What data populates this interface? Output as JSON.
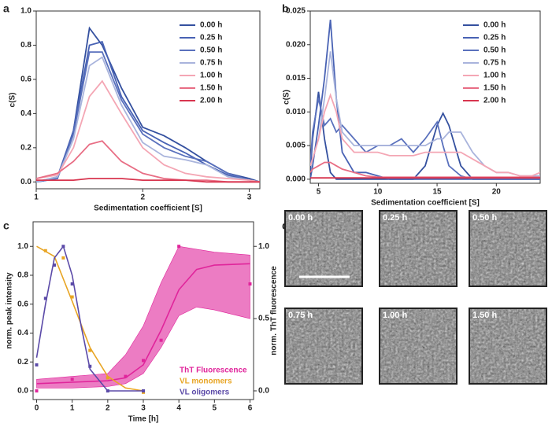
{
  "panel_labels": [
    "a",
    "b",
    "c",
    "d"
  ],
  "images": [
    "0.00 h",
    "0.25 h",
    "0.50 h",
    "0.75 h",
    "1.00 h",
    "1.50 h"
  ],
  "chart_data": [
    {
      "type": "line",
      "x_label": "Sedimentation coefficient [S]",
      "y_label": "c(S)",
      "xlim": [
        1,
        3.1
      ],
      "xticks": [
        1,
        2,
        3
      ],
      "ylim": [
        -0.04,
        1.0
      ],
      "yticks": [
        {
          "value": 0,
          "label": "0.0"
        },
        0.2,
        0.4,
        0.6,
        0.8,
        {
          "value": 1,
          "label": "1.0"
        }
      ],
      "x": [
        1.0,
        1.2,
        1.35,
        1.5,
        1.62,
        1.8,
        2.0,
        2.2,
        2.4,
        2.6,
        2.8,
        3.0,
        3.1
      ],
      "series": [
        {
          "name": "0.00 h",
          "color": "#34509f",
          "values": [
            0.0,
            0.02,
            0.3,
            0.9,
            0.8,
            0.55,
            0.32,
            0.27,
            0.2,
            0.12,
            0.05,
            0.02,
            0.0
          ]
        },
        {
          "name": "0.25 h",
          "color": "#4862b4",
          "values": [
            0.0,
            0.03,
            0.3,
            0.8,
            0.82,
            0.5,
            0.3,
            0.23,
            0.17,
            0.1,
            0.04,
            0.01,
            0.0
          ]
        },
        {
          "name": "0.50 h",
          "color": "#5a71bd",
          "values": [
            0.0,
            0.02,
            0.28,
            0.76,
            0.76,
            0.48,
            0.28,
            0.2,
            0.15,
            0.12,
            0.05,
            0.01,
            0.0
          ]
        },
        {
          "name": "0.75 h",
          "color": "#a9b4dc",
          "values": [
            0.0,
            0.03,
            0.25,
            0.68,
            0.73,
            0.45,
            0.23,
            0.15,
            0.13,
            0.1,
            0.03,
            0.01,
            0.0
          ]
        },
        {
          "name": "1.00 h",
          "color": "#f4a6b4",
          "values": [
            0.02,
            0.04,
            0.2,
            0.5,
            0.59,
            0.4,
            0.2,
            0.1,
            0.05,
            0.03,
            0.02,
            0.01,
            0.0
          ]
        },
        {
          "name": "1.50 h",
          "color": "#e86d84",
          "values": [
            0.02,
            0.05,
            0.12,
            0.22,
            0.24,
            0.12,
            0.05,
            0.02,
            0.01,
            0.01,
            0.0,
            0.0,
            0.0
          ]
        },
        {
          "name": "2.00 h",
          "color": "#d8354f",
          "values": [
            0.01,
            0.01,
            0.01,
            0.02,
            0.02,
            0.02,
            0.01,
            0.01,
            0.01,
            0.0,
            0.0,
            0.0,
            0.0
          ]
        }
      ]
    },
    {
      "type": "line",
      "x_label": "Sedimentation coefficient [S]",
      "y_label": "c(S)",
      "xlim": [
        4.3,
        23.7
      ],
      "xticks": [
        5,
        10,
        15,
        20
      ],
      "ylim": [
        -0.0006,
        0.025
      ],
      "yticks": [
        {
          "value": 0,
          "label": "0.000"
        },
        {
          "value": 0.005,
          "label": "0.005"
        },
        {
          "value": 0.01,
          "label": "0.010"
        },
        {
          "value": 0.015,
          "label": "0.015"
        },
        {
          "value": 0.02,
          "label": "0.020"
        },
        {
          "value": 0.025,
          "label": "0.025"
        }
      ],
      "x": [
        4.3,
        4.5,
        5,
        5.5,
        6,
        6.5,
        7,
        8,
        9,
        10,
        11,
        12,
        13,
        14,
        15,
        15.5,
        16,
        17,
        18,
        19,
        20,
        21,
        22,
        23,
        23.7
      ],
      "series": [
        {
          "name": "0.00 h",
          "color": "#34509f",
          "values": [
            0.001,
            0.006,
            0.013,
            0.006,
            0.001,
            0.0,
            0.0,
            0.0,
            0.0,
            0.0,
            0.0,
            0.0,
            0.0,
            0.002,
            0.008,
            0.0098,
            0.008,
            0.002,
            0.0,
            0.0,
            0.0,
            0.0,
            0.0,
            0.0,
            0.0
          ]
        },
        {
          "name": "0.25 h",
          "color": "#4862b4",
          "values": [
            0.0,
            0.002,
            0.008,
            0.015,
            0.0237,
            0.012,
            0.004,
            0.001,
            0.001,
            0.0005,
            0.0,
            0.0,
            0.0,
            0.0,
            0.0,
            0.0,
            0.0,
            0.0,
            0.0,
            0.0,
            0.0,
            0.0,
            0.0,
            0.0,
            0.0
          ]
        },
        {
          "name": "0.50 h",
          "color": "#5a71bd",
          "values": [
            0.002,
            0.007,
            0.012,
            0.008,
            0.009,
            0.007,
            0.008,
            0.006,
            0.004,
            0.005,
            0.005,
            0.006,
            0.004,
            0.006,
            0.0085,
            0.005,
            0.002,
            0.0005,
            0.0,
            0.0,
            0.0,
            0.0,
            0.0,
            0.0,
            0.0
          ]
        },
        {
          "name": "0.75 h",
          "color": "#a9b4dc",
          "values": [
            0.002,
            0.003,
            0.006,
            0.012,
            0.019,
            0.012,
            0.007,
            0.005,
            0.005,
            0.005,
            0.005,
            0.005,
            0.005,
            0.005,
            0.006,
            0.006,
            0.007,
            0.007,
            0.004,
            0.002,
            0.001,
            0.001,
            0.0005,
            0.0005,
            0.0005
          ]
        },
        {
          "name": "1.00 h",
          "color": "#f4a6b4",
          "values": [
            0.002,
            0.003,
            0.006,
            0.01,
            0.0125,
            0.01,
            0.006,
            0.004,
            0.004,
            0.004,
            0.0035,
            0.0035,
            0.0035,
            0.004,
            0.004,
            0.004,
            0.004,
            0.004,
            0.003,
            0.002,
            0.001,
            0.001,
            0.0005,
            0.0005,
            0.001
          ]
        },
        {
          "name": "1.50 h",
          "color": "#e86d84",
          "values": [
            0.001,
            0.0015,
            0.002,
            0.0025,
            0.0025,
            0.002,
            0.0015,
            0.001,
            0.0005,
            0.0003,
            0.0003,
            0.0003,
            0.0003,
            0.0003,
            0.0003,
            0.0003,
            0.0003,
            0.0003,
            0.0003,
            0.0003,
            0.0003,
            0.0003,
            0.0003,
            0.0003,
            0.0003
          ]
        },
        {
          "name": "2.00 h",
          "color": "#d8354f",
          "values": [
            0.0002,
            0.0002,
            0.0002,
            0.0002,
            0.0002,
            0.0002,
            0.0002,
            0.0002,
            0.0002,
            0.0002,
            0.0002,
            0.0002,
            0.0002,
            0.0002,
            0.0002,
            0.0002,
            0.0002,
            0.0002,
            0.0002,
            0.0002,
            0.0002,
            0.0002,
            0.0002,
            0.0002,
            0.0002
          ]
        }
      ]
    },
    {
      "type": "scatter",
      "x_label": "Time [h]",
      "y_label": "norm. peak intensity",
      "y2_label": "norm. ThT fluorescence",
      "xlim": [
        -0.1,
        6.1
      ],
      "xticks": [
        0,
        1,
        2,
        3,
        4,
        5,
        6
      ],
      "ylim": [
        -0.06,
        1.17
      ],
      "yticks": [
        {
          "value": 0,
          "label": "0.0"
        },
        0.2,
        0.4,
        0.6,
        0.8,
        {
          "value": 1,
          "label": "1.0"
        }
      ],
      "y2lim": [
        -0.06,
        1.17
      ],
      "y2ticks": [
        {
          "value": 0,
          "label": "0.0"
        },
        0.5,
        {
          "value": 1,
          "label": "1.0"
        }
      ],
      "series": [
        {
          "name": "ThT Fluorescence",
          "color": "#e0259b",
          "axis": "y2",
          "x": [
            0,
            1,
            2,
            2.5,
            3,
            3.5,
            4,
            6
          ],
          "values": [
            0.0,
            0.08,
            0.09,
            0.1,
            0.21,
            0.35,
            1.0,
            0.74
          ],
          "fit_x": [
            0,
            1,
            2,
            2.5,
            3,
            3.5,
            4,
            4.5,
            5,
            6
          ],
          "fit_values": [
            0.05,
            0.06,
            0.07,
            0.09,
            0.18,
            0.42,
            0.7,
            0.84,
            0.87,
            0.88
          ],
          "band_low": [
            0.02,
            0.02,
            0.03,
            0.05,
            0.12,
            0.3,
            0.52,
            0.58,
            0.56,
            0.5
          ],
          "band_high": [
            0.08,
            0.1,
            0.12,
            0.25,
            0.45,
            0.75,
            1.0,
            0.98,
            0.96,
            0.94
          ]
        },
        {
          "name": "VL monomers",
          "color": "#e8a524",
          "x": [
            0.25,
            0.75,
            1,
            1.5,
            2,
            3
          ],
          "values": [
            0.97,
            0.92,
            0.65,
            0.28,
            0.09,
            -0.01
          ],
          "fit_x": [
            0,
            0.5,
            1,
            1.5,
            2,
            2.5,
            3
          ],
          "fit_values": [
            1.0,
            0.93,
            0.62,
            0.3,
            0.1,
            0.02,
            0.0
          ]
        },
        {
          "name": "VL oligomers",
          "color": "#5b4aa8",
          "x": [
            0,
            0.25,
            0.5,
            0.75,
            1,
            1.5,
            2,
            3
          ],
          "values": [
            0.18,
            0.64,
            0.87,
            1.0,
            0.74,
            0.17,
            0.0,
            0.0
          ],
          "fit_x": [
            0,
            0.25,
            0.5,
            0.75,
            1,
            1.25,
            1.5,
            2,
            2.5,
            3
          ],
          "fit_values": [
            0.23,
            0.6,
            0.92,
            1.0,
            0.8,
            0.45,
            0.15,
            0.0,
            0.0,
            0.0
          ]
        }
      ]
    }
  ]
}
